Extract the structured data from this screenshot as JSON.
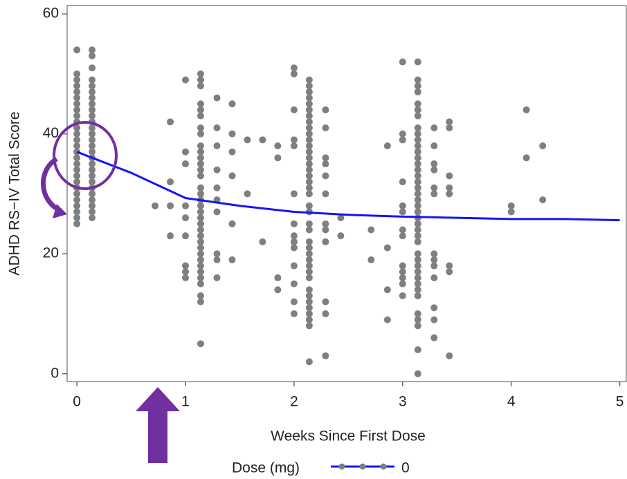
{
  "chart_data": {
    "type": "scatter",
    "y_label": "ADHD RS−IV Total Score",
    "x_label": "Weeks Since First Dose",
    "legend_title": "Dose (mg)",
    "xlim": [
      -0.09,
      5.06
    ],
    "ylim": [
      -1.3,
      61.4
    ],
    "xticks": [
      0,
      1,
      2,
      3,
      4,
      5
    ],
    "yticks": [
      0,
      20,
      40,
      60
    ],
    "series": [
      {
        "kind": "scatter",
        "color": "#7f7f7f",
        "x": [
          0,
          0,
          0,
          0,
          0,
          0,
          0,
          0,
          0,
          0,
          0,
          0,
          0,
          0,
          0,
          0,
          0,
          0,
          0,
          0,
          0,
          0,
          0,
          0,
          0,
          0,
          0,
          0.14,
          0.14,
          0.14,
          0.14,
          0.14,
          0.14,
          0.14,
          0.14,
          0.14,
          0.14,
          0.14,
          0.14,
          0.14,
          0.14,
          0.14,
          0.14,
          0.14,
          0.14,
          0.14,
          0.14,
          0.14,
          0.14,
          0.14,
          0.14,
          0.14,
          0.14,
          0.14,
          0.72,
          0.86,
          0.86,
          0.86,
          0.86,
          1,
          1,
          1,
          1,
          1,
          1,
          1,
          1,
          1,
          1.14,
          1.14,
          1.14,
          1.14,
          1.14,
          1.14,
          1.14,
          1.14,
          1.14,
          1.14,
          1.14,
          1.14,
          1.14,
          1.14,
          1.14,
          1.14,
          1.14,
          1.14,
          1.14,
          1.14,
          1.14,
          1.14,
          1.14,
          1.14,
          1.14,
          1.14,
          1.14,
          1.14,
          1.14,
          1.14,
          1.14,
          1.14,
          1.14,
          1.14,
          1.29,
          1.29,
          1.29,
          1.29,
          1.29,
          1.29,
          1.29,
          1.29,
          1.29,
          1.29,
          1.43,
          1.43,
          1.43,
          1.43,
          1.43,
          1.43,
          1.57,
          1.57,
          1.71,
          1.71,
          1.85,
          1.85,
          1.85,
          1.85,
          2,
          2,
          2,
          2,
          2,
          2,
          2,
          2,
          2,
          2,
          2,
          2,
          2,
          2,
          2.14,
          2.14,
          2.14,
          2.14,
          2.14,
          2.14,
          2.14,
          2.14,
          2.14,
          2.14,
          2.14,
          2.14,
          2.14,
          2.14,
          2.14,
          2.14,
          2.14,
          2.14,
          2.14,
          2.14,
          2.14,
          2.14,
          2.14,
          2.14,
          2.14,
          2.14,
          2.14,
          2.14,
          2.14,
          2.14,
          2.14,
          2.14,
          2.14,
          2.14,
          2.14,
          2.14,
          2.14,
          2.14,
          2.14,
          2.29,
          2.29,
          2.29,
          2.29,
          2.29,
          2.29,
          2.29,
          2.29,
          2.29,
          2.29,
          2.29,
          2.29,
          2.43,
          2.43,
          2.71,
          2.71,
          2.86,
          2.86,
          2.86,
          2.86,
          3,
          3,
          3,
          3,
          3,
          3,
          3,
          3,
          3,
          3,
          3,
          3,
          3,
          3.14,
          3.14,
          3.14,
          3.14,
          3.14,
          3.14,
          3.14,
          3.14,
          3.14,
          3.14,
          3.14,
          3.14,
          3.14,
          3.14,
          3.14,
          3.14,
          3.14,
          3.14,
          3.14,
          3.14,
          3.14,
          3.14,
          3.14,
          3.14,
          3.14,
          3.14,
          3.14,
          3.14,
          3.14,
          3.14,
          3.14,
          3.14,
          3.14,
          3.14,
          3.14,
          3.14,
          3.14,
          3.14,
          3.14,
          3.14,
          3.29,
          3.29,
          3.29,
          3.29,
          3.29,
          3.29,
          3.29,
          3.29,
          3.29,
          3.29,
          3.29,
          3.29,
          3.29,
          3.43,
          3.43,
          3.43,
          3.43,
          3.43,
          3.43,
          3.43,
          3.43,
          4,
          4,
          4.14,
          4.14,
          4.29,
          4.29
        ],
        "values": [
          54,
          50,
          49,
          48,
          47,
          46,
          45,
          44,
          43,
          42,
          41,
          40,
          39,
          38,
          37,
          36,
          35,
          34,
          33,
          32,
          31,
          30,
          29,
          28,
          27,
          26,
          25,
          54,
          53,
          51,
          49,
          48,
          47,
          46,
          45,
          44,
          43,
          42,
          41,
          40,
          39,
          38,
          37,
          36,
          35,
          34,
          33,
          32,
          31,
          30,
          29,
          28,
          27,
          26,
          28,
          42,
          32,
          28,
          23,
          49,
          37,
          35,
          28,
          26,
          23,
          18,
          17,
          16,
          50,
          49,
          48,
          45,
          44,
          43,
          41,
          40,
          38,
          37,
          36,
          35,
          34,
          33,
          31,
          30,
          29,
          28,
          27,
          26,
          25,
          24,
          23,
          22,
          21,
          20,
          19,
          18,
          17,
          16,
          15,
          13,
          12,
          5,
          46,
          41,
          38,
          34,
          31,
          29,
          27,
          20,
          19,
          16,
          45,
          40,
          37,
          33,
          25,
          19,
          39,
          30,
          39,
          22,
          38,
          36,
          16,
          14,
          51,
          50,
          44,
          39,
          38,
          30,
          25,
          23,
          22,
          21,
          18,
          15,
          12,
          10,
          49,
          48,
          47,
          46,
          45,
          44,
          43,
          42,
          41,
          40,
          39,
          38,
          37,
          36,
          35,
          34,
          33,
          32,
          31,
          30,
          28,
          27,
          25,
          24,
          22,
          21,
          20,
          19,
          18,
          17,
          16,
          14,
          13,
          12,
          11,
          10,
          9,
          8,
          2,
          44,
          41,
          36,
          35,
          33,
          30,
          25,
          24,
          22,
          12,
          10,
          3,
          26,
          23,
          24,
          19,
          38,
          21,
          14,
          9,
          52,
          40,
          39,
          32,
          28,
          27,
          24,
          23,
          18,
          17,
          16,
          15,
          13,
          52,
          49,
          48,
          47,
          45,
          44,
          43,
          41,
          40,
          39,
          38,
          37,
          36,
          35,
          34,
          33,
          32,
          31,
          30,
          29,
          28,
          27,
          26,
          25,
          24,
          23,
          22,
          20,
          19,
          18,
          17,
          16,
          15,
          14,
          13,
          10,
          9,
          8,
          4,
          0,
          41,
          38,
          35,
          34,
          31,
          30,
          20,
          19,
          18,
          16,
          11,
          9,
          6,
          42,
          41,
          33,
          31,
          30,
          18,
          17,
          3,
          28,
          27,
          44,
          36,
          38,
          29
        ]
      },
      {
        "kind": "line",
        "name": "0",
        "color": "#1414ff",
        "x": [
          0,
          0.5,
          1,
          1.5,
          2,
          2.5,
          3,
          3.5,
          4,
          4.5,
          5
        ],
        "values": [
          37,
          33.5,
          29.3,
          28,
          27,
          26.5,
          26.2,
          26,
          25.8,
          25.8,
          25.6
        ]
      }
    ]
  }
}
